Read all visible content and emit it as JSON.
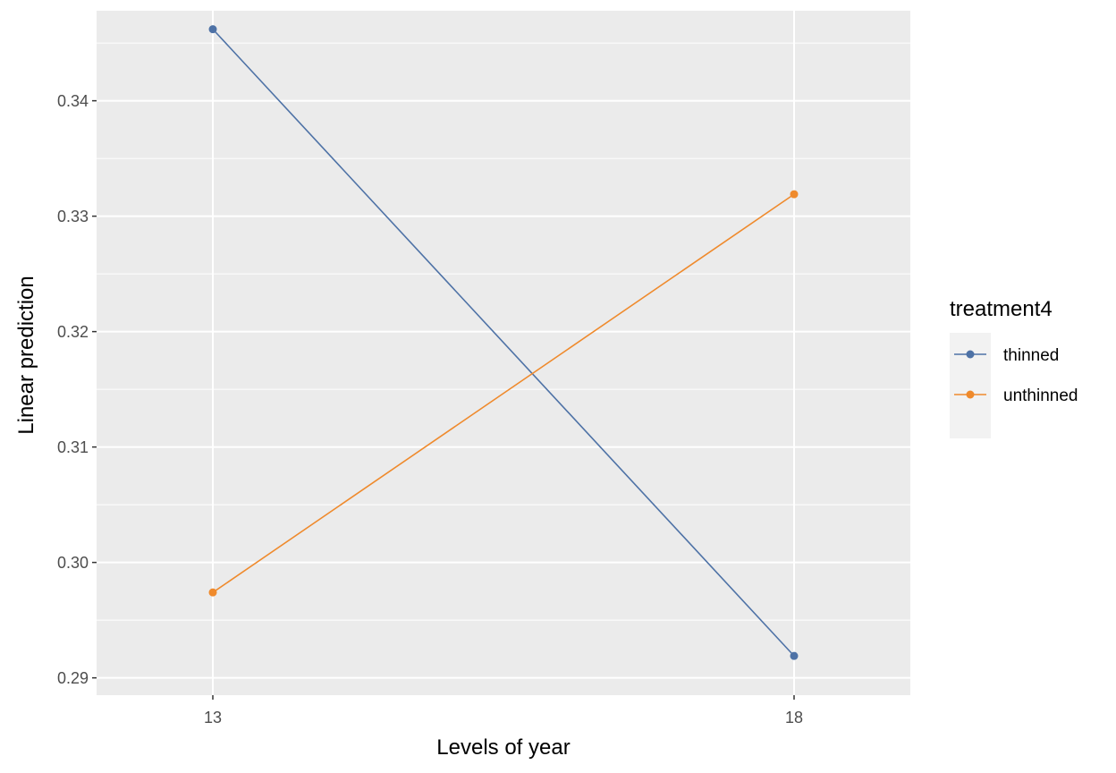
{
  "chart_data": {
    "type": "line",
    "xlabel": "Levels of year",
    "ylabel": "Linear prediction",
    "categories": [
      "13",
      "18"
    ],
    "ylim": [
      0.2885,
      0.3478
    ],
    "yticks": [
      0.29,
      0.3,
      0.31,
      0.32,
      0.33,
      0.34
    ],
    "ytick_labels": [
      "0.29",
      "0.30",
      "0.31",
      "0.32",
      "0.33",
      "0.34"
    ],
    "grid": true,
    "legend": {
      "title": "treatment4",
      "position": "right"
    },
    "series": [
      {
        "name": "thinned",
        "color": "#4e72a6",
        "values": [
          0.3462,
          0.2919
        ]
      },
      {
        "name": "unthinned",
        "color": "#ef8a2c",
        "values": [
          0.2974,
          0.3319
        ]
      }
    ]
  }
}
